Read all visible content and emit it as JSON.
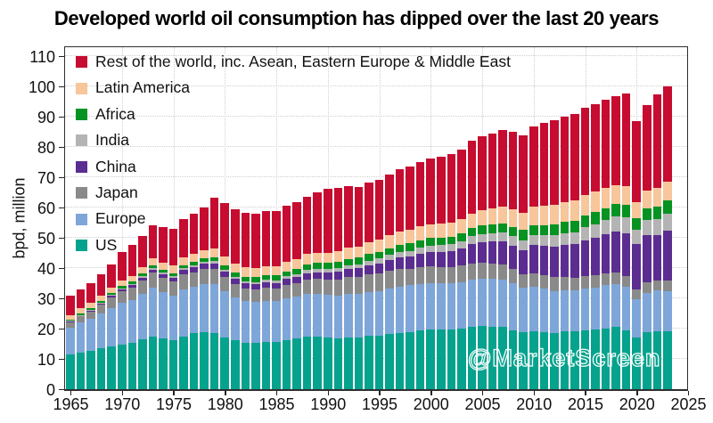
{
  "title": "Developed world oil consumption has dipped over the last 20 years",
  "watermark": "@MarketScreen",
  "y_axis": {
    "label": "bpd, million",
    "ticks": [
      0,
      10,
      20,
      30,
      40,
      50,
      60,
      70,
      80,
      90,
      100,
      110
    ]
  },
  "x_axis": {
    "ticks": [
      1965,
      1970,
      1975,
      1980,
      1985,
      1990,
      1995,
      2000,
      2005,
      2010,
      2015,
      2020,
      2025
    ]
  },
  "chart_data": {
    "type": "bar",
    "stacked": true,
    "title": "Developed world oil consumption has dipped over the last 20 years",
    "xlabel": "",
    "ylabel": "bpd, million",
    "ylim": [
      0,
      113
    ],
    "xlim": [
      1964,
      2025
    ],
    "grid": true,
    "legend_position": "top-left",
    "legend_order_top_to_bottom": [
      "Rest of the world, inc. Asean, Eastern Europe & Middle East",
      "Latin America",
      "Africa",
      "India",
      "China",
      "Japan",
      "Europe",
      "US"
    ],
    "years": [
      1965,
      1966,
      1967,
      1968,
      1969,
      1970,
      1971,
      1972,
      1973,
      1974,
      1975,
      1976,
      1977,
      1978,
      1979,
      1980,
      1981,
      1982,
      1983,
      1984,
      1985,
      1986,
      1987,
      1988,
      1989,
      1990,
      1991,
      1992,
      1993,
      1994,
      1995,
      1996,
      1997,
      1998,
      1999,
      2000,
      2001,
      2002,
      2003,
      2004,
      2005,
      2006,
      2007,
      2008,
      2009,
      2010,
      2011,
      2012,
      2013,
      2014,
      2015,
      2016,
      2017,
      2018,
      2019,
      2020,
      2021,
      2022,
      2023
    ],
    "series": [
      {
        "name": "US",
        "color": "#05a28d",
        "values": [
          11.5,
          12.1,
          12.6,
          13.4,
          14.1,
          14.7,
          15.2,
          16.4,
          17.3,
          16.7,
          16.3,
          17.5,
          18.4,
          18.8,
          18.5,
          17.1,
          16.1,
          15.3,
          15.2,
          15.7,
          15.7,
          16.3,
          16.7,
          17.3,
          17.3,
          17.0,
          16.7,
          17.0,
          17.2,
          17.7,
          17.7,
          18.3,
          18.6,
          18.9,
          19.5,
          19.7,
          19.6,
          19.8,
          20.0,
          20.7,
          20.8,
          20.7,
          20.7,
          19.5,
          18.8,
          19.2,
          18.9,
          18.5,
          19.0,
          19.1,
          19.5,
          19.7,
          20.0,
          20.5,
          19.4,
          17.2,
          18.8,
          19.0,
          19.0
        ]
      },
      {
        "name": "Europe",
        "color": "#7ea6d9",
        "values": [
          8.9,
          9.9,
          10.6,
          11.6,
          12.8,
          13.9,
          14.3,
          15.2,
          16.2,
          15.3,
          14.6,
          15.6,
          15.4,
          15.9,
          16.2,
          15.3,
          14.3,
          13.8,
          13.5,
          13.5,
          13.3,
          13.8,
          13.9,
          14.1,
          14.1,
          14.1,
          14.3,
          14.5,
          14.4,
          14.5,
          14.7,
          15.0,
          15.2,
          15.4,
          15.3,
          15.3,
          15.4,
          15.3,
          15.4,
          15.5,
          15.7,
          15.7,
          15.5,
          15.4,
          14.7,
          14.7,
          14.3,
          13.8,
          13.6,
          13.5,
          13.8,
          14.0,
          14.3,
          14.3,
          14.3,
          12.6,
          13.1,
          13.6,
          13.5
        ]
      },
      {
        "name": "Japan",
        "color": "#8a8a8a",
        "values": [
          1.7,
          2.0,
          2.5,
          2.9,
          3.5,
          3.8,
          4.1,
          4.4,
          5.0,
          4.9,
          4.6,
          4.8,
          4.9,
          4.9,
          5.1,
          4.7,
          4.4,
          4.2,
          4.2,
          4.3,
          4.2,
          4.3,
          4.3,
          4.8,
          5.0,
          5.1,
          5.3,
          5.5,
          5.4,
          5.7,
          5.8,
          5.8,
          5.8,
          5.5,
          5.6,
          5.5,
          5.4,
          5.3,
          5.5,
          5.3,
          5.4,
          5.2,
          5.0,
          4.8,
          4.4,
          4.4,
          4.4,
          4.7,
          4.5,
          4.3,
          4.1,
          4.0,
          4.0,
          3.9,
          3.8,
          3.3,
          3.3,
          3.4,
          3.4
        ]
      },
      {
        "name": "China",
        "color": "#5c2d91",
        "values": [
          0.2,
          0.25,
          0.25,
          0.3,
          0.4,
          0.55,
          0.7,
          0.9,
          1.05,
          1.2,
          1.35,
          1.5,
          1.7,
          1.8,
          1.8,
          1.7,
          1.6,
          1.65,
          1.7,
          1.75,
          1.8,
          1.95,
          2.05,
          2.2,
          2.3,
          2.3,
          2.45,
          2.65,
          2.95,
          3.1,
          3.35,
          3.6,
          3.9,
          4.0,
          4.35,
          4.7,
          4.85,
          5.15,
          5.6,
          6.45,
          6.8,
          7.25,
          7.6,
          7.7,
          8.05,
          9.25,
          9.75,
          10.2,
          10.7,
          11.15,
          11.9,
          12.3,
          12.8,
          13.3,
          14.05,
          14.9,
          15.7,
          15.0,
          16.6
        ]
      },
      {
        "name": "India",
        "color": "#b4b4b4",
        "values": [
          0.25,
          0.3,
          0.3,
          0.35,
          0.35,
          0.4,
          0.4,
          0.45,
          0.45,
          0.45,
          0.5,
          0.5,
          0.55,
          0.6,
          0.65,
          0.65,
          0.7,
          0.75,
          0.8,
          0.85,
          0.9,
          0.95,
          1.0,
          1.1,
          1.15,
          1.2,
          1.25,
          1.35,
          1.4,
          1.5,
          1.6,
          1.7,
          1.8,
          1.95,
          2.15,
          2.25,
          2.3,
          2.35,
          2.4,
          2.55,
          2.6,
          2.75,
          2.95,
          3.1,
          3.25,
          3.3,
          3.5,
          3.7,
          3.75,
          3.85,
          4.15,
          4.55,
          4.75,
          5.0,
          5.15,
          4.65,
          4.9,
          5.2,
          5.45
        ]
      },
      {
        "name": "Africa",
        "color": "#079321",
        "values": [
          0.55,
          0.6,
          0.6,
          0.65,
          0.7,
          0.75,
          0.8,
          0.85,
          0.9,
          0.95,
          1.0,
          1.05,
          1.1,
          1.2,
          1.3,
          1.4,
          1.45,
          1.5,
          1.55,
          1.6,
          1.65,
          1.7,
          1.75,
          1.85,
          1.9,
          2.0,
          2.0,
          2.05,
          2.1,
          2.15,
          2.2,
          2.25,
          2.3,
          2.4,
          2.4,
          2.45,
          2.5,
          2.55,
          2.6,
          2.75,
          2.9,
          2.95,
          3.05,
          3.2,
          3.35,
          3.45,
          3.4,
          3.6,
          3.7,
          3.8,
          3.9,
          3.95,
          4.05,
          4.1,
          4.2,
          3.8,
          3.95,
          4.15,
          4.35
        ]
      },
      {
        "name": "Latin America",
        "color": "#f7c69b",
        "values": [
          1.45,
          1.55,
          1.65,
          1.75,
          1.85,
          1.95,
          2.0,
          2.1,
          2.25,
          2.35,
          2.45,
          2.55,
          2.65,
          2.8,
          2.95,
          3.0,
          3.0,
          3.0,
          3.0,
          3.05,
          3.1,
          3.2,
          3.3,
          3.35,
          3.4,
          3.45,
          3.55,
          3.65,
          3.75,
          3.9,
          4.05,
          4.2,
          4.4,
          4.55,
          4.6,
          4.65,
          4.7,
          4.65,
          4.6,
          4.8,
          5.05,
          5.2,
          5.5,
          5.7,
          5.75,
          6.15,
          6.25,
          6.4,
          6.6,
          6.8,
          6.9,
          6.7,
          6.6,
          6.4,
          6.25,
          5.5,
          5.95,
          6.25,
          6.4
        ]
      },
      {
        "name": "Rest of the world, inc. Asean, Eastern Europe & Middle East",
        "color": "#c60c30",
        "values": [
          6.3,
          6.4,
          6.6,
          7.1,
          7.6,
          9.3,
          10.1,
          10.4,
          10.9,
          11.6,
          12.2,
          12.7,
          13.4,
          14.1,
          16.8,
          17.7,
          18.0,
          18.0,
          17.9,
          18.0,
          18.3,
          18.5,
          18.8,
          18.9,
          19.8,
          21.0,
          20.9,
          20.3,
          19.7,
          19.6,
          19.8,
          20.1,
          20.8,
          20.8,
          21.1,
          21.8,
          22.2,
          22.5,
          23.2,
          24.1,
          24.2,
          24.7,
          25.3,
          25.7,
          25.7,
          26.5,
          27.5,
          27.9,
          28.3,
          28.5,
          28.7,
          29.0,
          29.1,
          29.2,
          30.5,
          26.7,
          28.2,
          30.7,
          31.5
        ]
      }
    ]
  }
}
